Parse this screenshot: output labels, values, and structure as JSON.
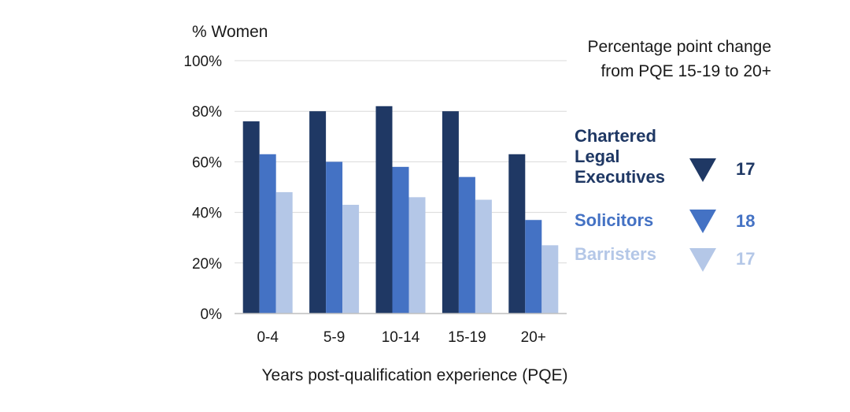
{
  "chart_data": {
    "type": "bar",
    "ylabel": "% Women",
    "xlabel": "Years post-qualification experience (PQE)",
    "ylim": [
      0,
      100
    ],
    "yticks": [
      "0%",
      "20%",
      "40%",
      "60%",
      "80%",
      "100%"
    ],
    "grid": true,
    "categories": [
      "0-4",
      "5-9",
      "10-14",
      "15-19",
      "20+"
    ],
    "series": [
      {
        "name": "Chartered Legal Executives",
        "values": [
          76,
          80,
          82,
          80,
          63
        ]
      },
      {
        "name": "Solicitors",
        "values": [
          63,
          60,
          58,
          54,
          37
        ]
      },
      {
        "name": "Barristers",
        "values": [
          48,
          43,
          46,
          45,
          27
        ]
      }
    ],
    "colors": [
      "#1f3864",
      "#4472c4",
      "#b4c7e7"
    ],
    "legend_title": "Percentage point change from PQE 15-19 to 20+",
    "legend_placement": "right",
    "changes": [
      {
        "series": "Chartered Legal Executives",
        "direction": "down",
        "value": "17"
      },
      {
        "series": "Solicitors",
        "direction": "down",
        "value": "18"
      },
      {
        "series": "Barristers",
        "direction": "down",
        "value": "17"
      }
    ]
  }
}
